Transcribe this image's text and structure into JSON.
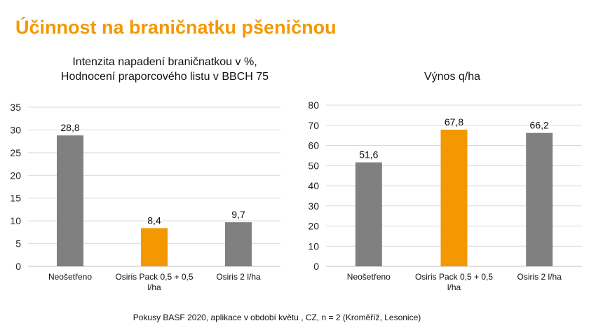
{
  "slide": {
    "title": "Účinnost na braničnatku pšeničnou",
    "footer": "Pokusy BASF 2020, aplikace v období květu , CZ, n = 2 (Kroměříž, Lesonice)"
  },
  "colors": {
    "accent": "#f39800",
    "gray": "#808080",
    "grid": "#d9d9d9"
  },
  "chart_data": [
    {
      "type": "bar",
      "title_lines": [
        "Intenzita napadení braničnatkou v %,",
        "Hodnocení praporcového listu v BBCH 75"
      ],
      "categories": [
        [
          "Neošetřeno"
        ],
        [
          "Osiris Pack 0,5 + 0,5",
          "l/ha"
        ],
        [
          "Osiris 2 l/ha"
        ]
      ],
      "values": [
        28.8,
        8.4,
        9.7
      ],
      "value_labels": [
        "28,8",
        "8,4",
        "9,7"
      ],
      "bar_colors": [
        "#808080",
        "#f39800",
        "#808080"
      ],
      "ylim": [
        0,
        35
      ],
      "yticks": [
        0,
        5,
        10,
        15,
        20,
        25,
        30,
        35
      ],
      "grid": true,
      "legend": "none"
    },
    {
      "type": "bar",
      "title_lines": [
        "Výnos q/ha"
      ],
      "categories": [
        [
          "Neošetřeno"
        ],
        [
          "Osiris Pack 0,5 + 0,5",
          "l/ha"
        ],
        [
          "Osiris 2 l/ha"
        ]
      ],
      "values": [
        51.6,
        67.8,
        66.2
      ],
      "value_labels": [
        "51,6",
        "67,8",
        "66,2"
      ],
      "bar_colors": [
        "#808080",
        "#f39800",
        "#808080"
      ],
      "ylim": [
        0,
        80
      ],
      "yticks": [
        0,
        10,
        20,
        30,
        40,
        50,
        60,
        70,
        80
      ],
      "grid": true,
      "legend": "none"
    }
  ]
}
